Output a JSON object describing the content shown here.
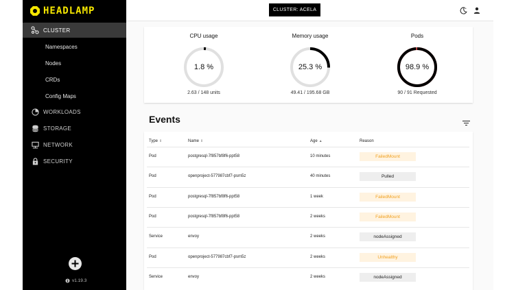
{
  "sidebar": {
    "logo_text": "HEADLAMP",
    "cluster_label": "CLUSTER",
    "sub_items": [
      "Namespaces",
      "Nodes",
      "CRDs",
      "Config Maps"
    ],
    "workloads_label": "WORKLOADS",
    "storage_label": "STORAGE",
    "network_label": "NETWORK",
    "security_label": "SECURITY",
    "version": "v1.19.3"
  },
  "header": {
    "cluster_button": "CLUSTER: ACELA"
  },
  "overview": {
    "cpu": {
      "title": "CPU usage",
      "percent_label": "1.8 %",
      "percent": 1.8,
      "sub": "2.63 / 148 units"
    },
    "memory": {
      "title": "Memory usage",
      "percent_label": "25.3 %",
      "percent": 25.3,
      "sub": "49.41 / 195.68 GB"
    },
    "pods": {
      "title": "Pods",
      "percent_label": "98.9 %",
      "percent": 98.9,
      "sub": "90 / 91 Requested"
    }
  },
  "events": {
    "title": "Events",
    "columns": {
      "type": "Type",
      "name": "Name",
      "age": "Age",
      "reason": "Reason"
    },
    "sort_icons": {
      "type": "⇕",
      "name": "⇕",
      "age": "▲"
    },
    "rows": [
      {
        "type": "Pod",
        "name": "postgresql-7f857bf8f6-ppt58",
        "age": "10 minutes",
        "reason": "FailedMount",
        "level": "warn"
      },
      {
        "type": "Pod",
        "name": "openproject-577987cbf7-psm5z",
        "age": "40 minutes",
        "reason": "Pulled",
        "level": "norm"
      },
      {
        "type": "Pod",
        "name": "postgresql-7f857bf8f6-ppt58",
        "age": "1 week",
        "reason": "FailedMount",
        "level": "warn"
      },
      {
        "type": "Pod",
        "name": "postgresql-7f857bf8f6-ppt58",
        "age": "2 weeks",
        "reason": "FailedMount",
        "level": "warn"
      },
      {
        "type": "Service",
        "name": "envoy",
        "age": "2 weeks",
        "reason": "nodeAssigned",
        "level": "norm"
      },
      {
        "type": "Pod",
        "name": "openproject-577987cbf7-psm5z",
        "age": "2 weeks",
        "reason": "Unhealthy",
        "level": "warn"
      },
      {
        "type": "Service",
        "name": "envoy",
        "age": "2 weeks",
        "reason": "nodeAssigned",
        "level": "norm"
      }
    ]
  },
  "colors": {
    "logo_yellow": "#f5e600",
    "warn_text": "#f0a020",
    "warn_bg": "#fff3e0",
    "pods_warn_mark": "#e35050"
  }
}
